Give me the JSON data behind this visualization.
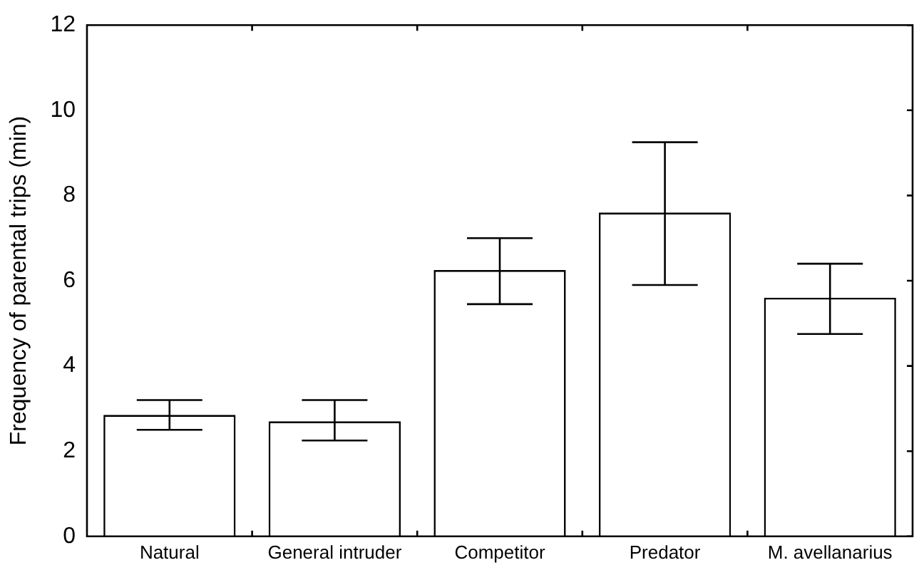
{
  "chart_data": {
    "type": "bar",
    "ylabel": "Frequency of parental trips (min)",
    "categories": [
      "Natural",
      "General intruder",
      "Competitor",
      "Predator",
      "M. avellanarius"
    ],
    "values": [
      2.85,
      2.7,
      6.25,
      7.6,
      5.6
    ],
    "errors": [
      [
        2.5,
        3.2
      ],
      [
        2.25,
        3.2
      ],
      [
        5.45,
        7.0
      ],
      [
        5.9,
        9.25
      ],
      [
        4.75,
        6.4
      ]
    ],
    "color": "#ffffff",
    "ylim": [
      0,
      12
    ],
    "yticks": [
      0,
      2,
      4,
      6,
      8,
      10,
      12
    ],
    "grid": false,
    "legend": false
  }
}
